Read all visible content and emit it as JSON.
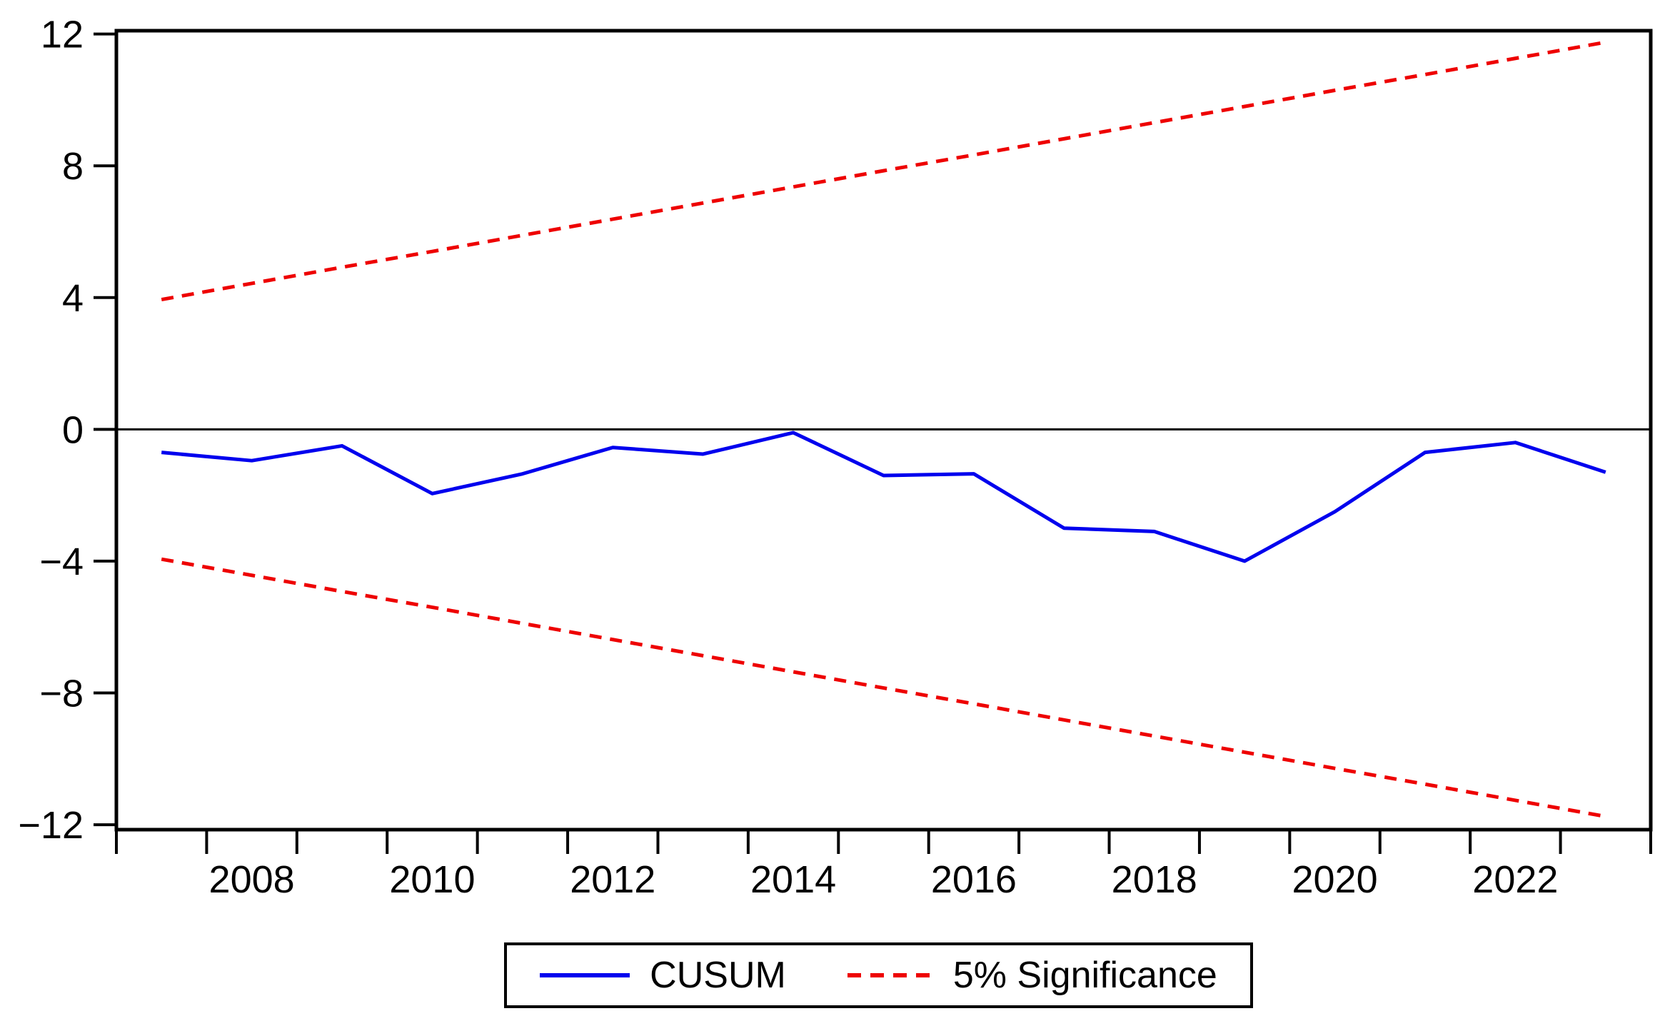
{
  "chart_data": {
    "type": "line",
    "title": "",
    "xlabel": "",
    "ylabel": "",
    "x": [
      2007,
      2008,
      2009,
      2010,
      2011,
      2012,
      2013,
      2014,
      2015,
      2016,
      2017,
      2018,
      2019,
      2020,
      2021,
      2022,
      2023
    ],
    "series": [
      {
        "name": "CUSUM",
        "style": "solid",
        "color": "#0000ee",
        "values": [
          -0.7,
          -0.95,
          -0.5,
          -1.95,
          -1.35,
          -0.55,
          -0.75,
          -0.1,
          -1.4,
          -1.35,
          -3.0,
          -3.1,
          -4.0,
          -2.5,
          -0.7,
          -0.4,
          -1.3
        ]
      },
      {
        "name": "5% Significance (upper bound)",
        "style": "dashed",
        "color": "#ee0000",
        "values": [
          3.94,
          4.43,
          4.92,
          5.4,
          5.89,
          6.38,
          6.87,
          7.36,
          7.85,
          8.33,
          8.82,
          9.31,
          9.8,
          10.29,
          10.77,
          11.26,
          11.75
        ]
      },
      {
        "name": "5% Significance (lower bound)",
        "style": "dashed",
        "color": "#ee0000",
        "values": [
          -3.94,
          -4.43,
          -4.92,
          -5.4,
          -5.89,
          -6.38,
          -6.87,
          -7.36,
          -7.85,
          -8.33,
          -8.82,
          -9.31,
          -9.8,
          -10.29,
          -10.77,
          -11.26,
          -11.75
        ]
      }
    ],
    "x_axis": {
      "min": 2006.5,
      "max": 2023.5,
      "minor_tick_step": 1,
      "label_years": [
        2008,
        2010,
        2012,
        2014,
        2016,
        2018,
        2020,
        2022
      ],
      "labels": [
        "2008",
        "2010",
        "2012",
        "2014",
        "2016",
        "2018",
        "2020",
        "2022"
      ]
    },
    "y_axis": {
      "min": -12.15,
      "max": 12.1,
      "ticks": [
        12,
        8,
        4,
        0,
        -4,
        -8,
        -12
      ],
      "tick_labels": [
        "12",
        "8",
        "4",
        "0",
        "−4",
        "−8",
        "−12"
      ]
    },
    "zero_line": 0,
    "grid": false,
    "legend_position": "bottom-center"
  },
  "legend": {
    "cusum_label": "CUSUM",
    "significance_label": "5% Significance"
  },
  "colors": {
    "cusum": "#0000ee",
    "significance": "#ee0000",
    "axis": "#000000",
    "background": "#ffffff"
  }
}
